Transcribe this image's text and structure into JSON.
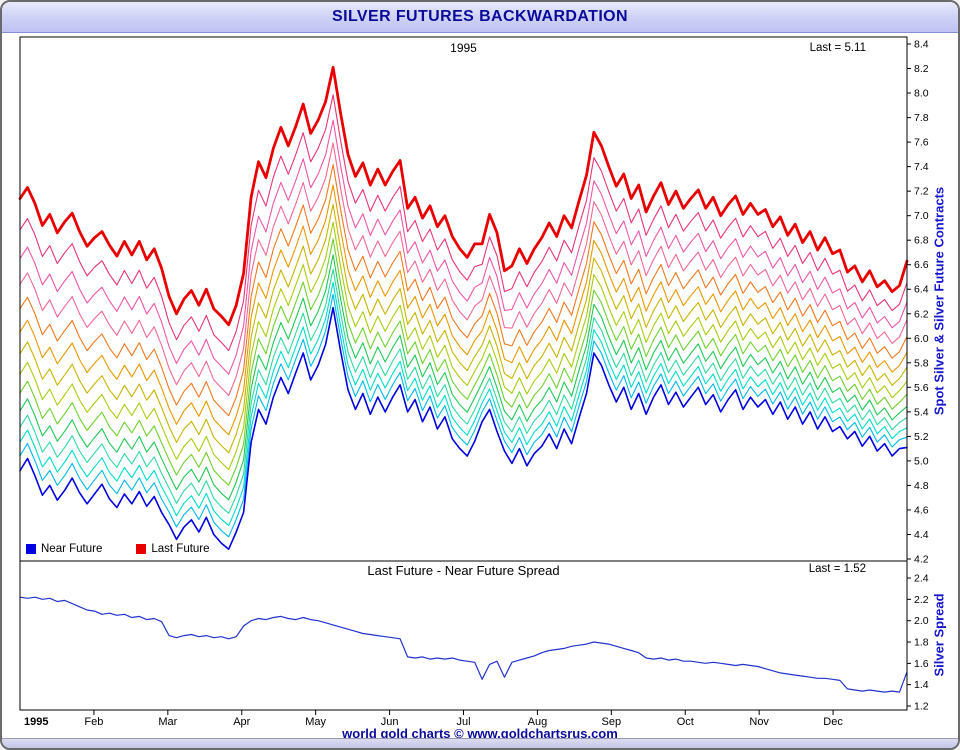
{
  "window": {
    "title": "SILVER FUTURES BACKWARDATION",
    "footer": "world gold charts © www.goldchartsrus.com"
  },
  "chart_data": [
    {
      "type": "line",
      "title": "1995",
      "annotation": "Last = 5.11",
      "ylabel": "Spot Silver & Silver Future Contracts",
      "ylim": [
        4.2,
        8.4
      ],
      "ytick_step": 0.2,
      "grid": false,
      "x_categories": [
        "1995",
        "Feb",
        "Mar",
        "Apr",
        "May",
        "Jun",
        "Jul",
        "Aug",
        "Sep",
        "Oct",
        "Nov",
        "Dec"
      ],
      "legend": [
        {
          "label": "Near Future",
          "color": "#0000e0"
        },
        {
          "label": "Last Future",
          "color": "#e80000"
        }
      ],
      "series_model": "contract[i][t] = near_future[t] + fraction[i] * spread[t]; spread series is chart 2 values",
      "near_future": [
        4.92,
        5.02,
        4.88,
        4.72,
        4.8,
        4.68,
        4.76,
        4.86,
        4.74,
        4.65,
        4.73,
        4.81,
        4.69,
        4.62,
        4.73,
        4.65,
        4.75,
        4.63,
        4.71,
        4.58,
        4.48,
        4.36,
        4.46,
        4.52,
        4.42,
        4.54,
        4.4,
        4.33,
        4.28,
        4.42,
        4.58,
        5.15,
        5.42,
        5.3,
        5.52,
        5.68,
        5.55,
        5.72,
        5.88,
        5.66,
        5.78,
        5.95,
        6.25,
        5.9,
        5.58,
        5.42,
        5.55,
        5.38,
        5.52,
        5.4,
        5.52,
        5.62,
        5.4,
        5.5,
        5.32,
        5.44,
        5.26,
        5.36,
        5.18,
        5.1,
        5.04,
        5.16,
        5.32,
        5.42,
        5.24,
        5.08,
        4.98,
        5.1,
        4.96,
        5.06,
        5.12,
        5.22,
        5.1,
        5.26,
        5.14,
        5.35,
        5.55,
        5.88,
        5.78,
        5.62,
        5.48,
        5.6,
        5.42,
        5.55,
        5.38,
        5.52,
        5.62,
        5.46,
        5.56,
        5.44,
        5.52,
        5.6,
        5.46,
        5.54,
        5.4,
        5.5,
        5.58,
        5.42,
        5.52,
        5.44,
        5.5,
        5.38,
        5.48,
        5.34,
        5.44,
        5.3,
        5.4,
        5.26,
        5.36,
        5.24,
        5.28,
        5.18,
        5.24,
        5.12,
        5.2,
        5.08,
        5.14,
        5.04,
        5.1,
        5.11
      ],
      "contracts": [
        {
          "fraction": 0.0,
          "color": "#0000e0",
          "label": "Near Future"
        },
        {
          "fraction": 0.055,
          "color": "#00b8e8"
        },
        {
          "fraction": 0.105,
          "color": "#00dcd0"
        },
        {
          "fraction": 0.16,
          "color": "#30d8a0"
        },
        {
          "fraction": 0.22,
          "color": "#20c855"
        },
        {
          "fraction": 0.285,
          "color": "#70d030"
        },
        {
          "fraction": 0.355,
          "color": "#a8cc10"
        },
        {
          "fraction": 0.43,
          "color": "#c8b400"
        },
        {
          "fraction": 0.51,
          "color": "#e89800"
        },
        {
          "fraction": 0.595,
          "color": "#f07820"
        },
        {
          "fraction": 0.685,
          "color": "#f06890"
        },
        {
          "fraction": 0.78,
          "color": "#ee55aa"
        },
        {
          "fraction": 0.885,
          "color": "#e83376"
        },
        {
          "fraction": 1.0,
          "color": "#e80000",
          "label": "Last Future"
        }
      ]
    },
    {
      "type": "line",
      "title": "Last Future - Near Future Spread",
      "annotation": "Last = 1.52",
      "ylabel": "Silver Spread",
      "ylim": [
        1.2,
        2.4
      ],
      "ytick_step": 0.2,
      "grid": false,
      "line_color": "#2233cc",
      "values": [
        2.22,
        2.21,
        2.22,
        2.2,
        2.21,
        2.18,
        2.19,
        2.16,
        2.13,
        2.1,
        2.09,
        2.06,
        2.07,
        2.05,
        2.06,
        2.03,
        2.04,
        2.01,
        2.02,
        1.99,
        1.86,
        1.84,
        1.86,
        1.87,
        1.85,
        1.86,
        1.84,
        1.85,
        1.83,
        1.85,
        1.95,
        2.0,
        2.02,
        2.01,
        2.03,
        2.04,
        2.02,
        2.01,
        2.03,
        2.01,
        2.0,
        1.98,
        1.96,
        1.94,
        1.92,
        1.9,
        1.88,
        1.87,
        1.86,
        1.85,
        1.84,
        1.83,
        1.66,
        1.65,
        1.66,
        1.64,
        1.65,
        1.64,
        1.65,
        1.63,
        1.62,
        1.61,
        1.45,
        1.59,
        1.62,
        1.47,
        1.61,
        1.63,
        1.65,
        1.67,
        1.7,
        1.72,
        1.73,
        1.74,
        1.76,
        1.77,
        1.78,
        1.8,
        1.79,
        1.78,
        1.76,
        1.74,
        1.72,
        1.7,
        1.65,
        1.64,
        1.65,
        1.63,
        1.64,
        1.62,
        1.62,
        1.61,
        1.6,
        1.61,
        1.6,
        1.59,
        1.58,
        1.59,
        1.58,
        1.57,
        1.55,
        1.53,
        1.51,
        1.5,
        1.49,
        1.48,
        1.47,
        1.46,
        1.46,
        1.45,
        1.44,
        1.36,
        1.35,
        1.34,
        1.35,
        1.34,
        1.33,
        1.34,
        1.33,
        1.52
      ]
    }
  ]
}
